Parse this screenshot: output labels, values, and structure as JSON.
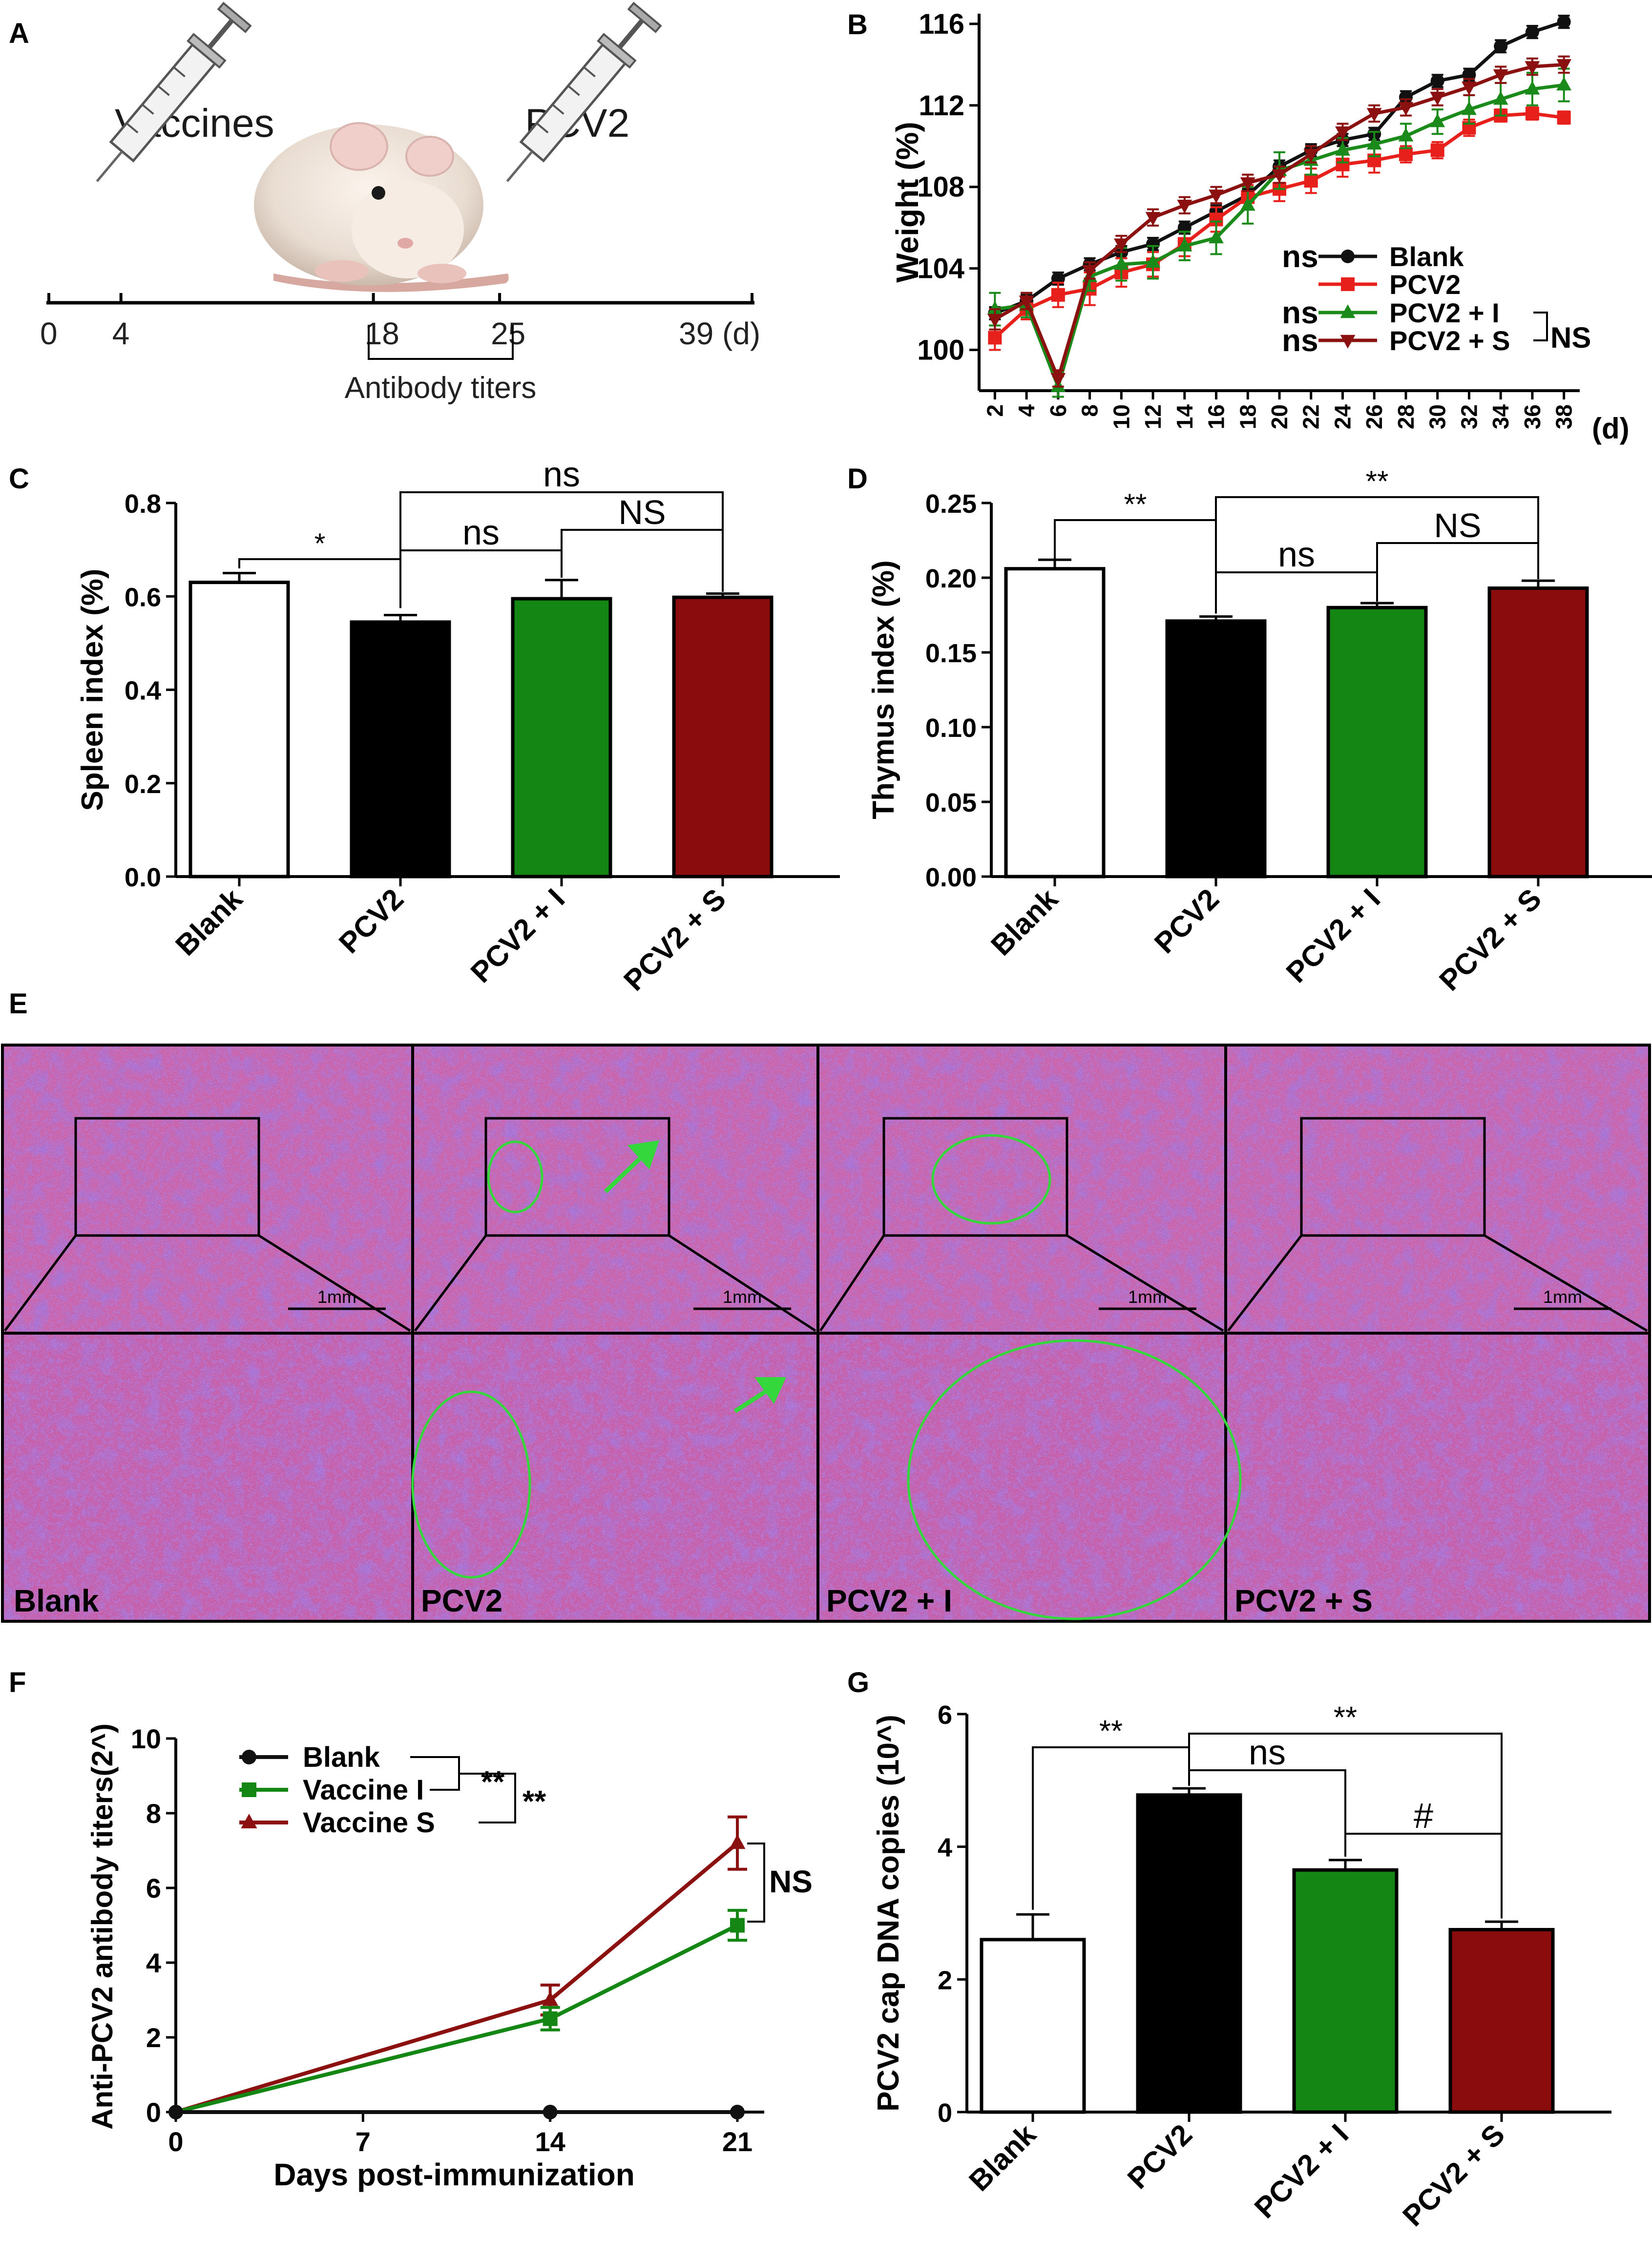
{
  "panel_letters": [
    "A",
    "B",
    "C",
    "D",
    "E",
    "F",
    "G"
  ],
  "colors": {
    "blank": "#111111",
    "pcv2": "#e8201c",
    "pcv2_i": "#1a8a1a",
    "pcv2_s": "#8b1010",
    "bar_blank": "#ffffff",
    "bar_pcv2": "#000000",
    "bar_i": "#138613",
    "bar_s": "#8b0c0c",
    "circle": "#35d83c",
    "tissue_bg": "#c45ca8",
    "tissue_dark": "#6a38b4"
  },
  "panelA": {
    "vaccines_label": "Vaccines",
    "pcv2_label": "PCV2",
    "ticks": [
      "0",
      "4",
      "18",
      "25",
      "39 (d)"
    ],
    "tick_days": [
      0,
      4,
      18,
      25,
      39
    ],
    "bracket_label": "Antibody titers"
  },
  "panelE": {
    "scale_label": "1mm",
    "captions": [
      "Blank",
      "PCV2",
      "PCV2 + I",
      "PCV2 + S"
    ]
  },
  "chart_data": [
    {
      "panel": "B",
      "type": "line",
      "title": "",
      "xlabel": "(d)",
      "ylabel": "Weight (%)",
      "ylim": [
        98,
        116.5
      ],
      "yticks": [
        100,
        104,
        108,
        112,
        116
      ],
      "x": [
        2,
        4,
        6,
        8,
        10,
        12,
        14,
        16,
        18,
        20,
        22,
        24,
        26,
        28,
        30,
        32,
        34,
        36,
        38
      ],
      "series": [
        {
          "name": "Blank",
          "color_key": "blank",
          "marker": "circle",
          "prefix": "ns",
          "values": [
            101.8,
            102.4,
            103.5,
            104.2,
            104.8,
            105.2,
            106.0,
            106.8,
            107.6,
            109.0,
            109.8,
            110.3,
            110.6,
            112.4,
            113.2,
            113.5,
            114.9,
            115.6,
            116.1
          ],
          "errors": [
            0.3,
            0.3,
            0.3,
            0.3,
            0.3,
            0.3,
            0.3,
            0.3,
            0.3,
            0.3,
            0.3,
            0.3,
            0.3,
            0.3,
            0.3,
            0.3,
            0.3,
            0.3,
            0.3
          ]
        },
        {
          "name": "PCV2",
          "color_key": "pcv2",
          "marker": "square",
          "prefix": "",
          "values": [
            100.6,
            102.0,
            102.7,
            103.0,
            103.8,
            104.2,
            105.2,
            106.4,
            107.5,
            107.9,
            108.3,
            109.1,
            109.3,
            109.6,
            109.8,
            110.9,
            111.5,
            111.6,
            111.4
          ],
          "errors": [
            0.6,
            0.5,
            0.6,
            0.8,
            0.7,
            0.6,
            0.6,
            0.6,
            0.6,
            0.6,
            0.6,
            0.6,
            0.6,
            0.4,
            0.4,
            0.4,
            0.3,
            0.3,
            0.3
          ]
        },
        {
          "name": "PCV2 + I",
          "color_key": "pcv2_i",
          "marker": "triangle-up",
          "prefix": "ns",
          "values": [
            102.0,
            102.2,
            98.2,
            103.6,
            104.2,
            104.3,
            105.1,
            105.5,
            107.1,
            108.8,
            109.3,
            109.8,
            110.1,
            110.5,
            111.2,
            111.8,
            112.3,
            112.8,
            113.0
          ],
          "errors": [
            0.8,
            0.6,
            0.5,
            0.7,
            0.8,
            0.8,
            0.7,
            0.8,
            0.9,
            0.9,
            0.7,
            0.6,
            0.6,
            0.6,
            0.6,
            0.7,
            0.8,
            0.8,
            0.8
          ]
        },
        {
          "name": "PCV2 + S",
          "color_key": "pcv2_s",
          "marker": "triangle-down",
          "prefix": "ns",
          "values": [
            101.5,
            102.4,
            98.6,
            103.9,
            105.2,
            106.5,
            107.1,
            107.6,
            108.2,
            108.6,
            109.6,
            110.7,
            111.6,
            111.9,
            112.4,
            112.9,
            113.5,
            113.9,
            114.0
          ],
          "errors": [
            0.5,
            0.4,
            0.4,
            0.4,
            0.4,
            0.4,
            0.4,
            0.4,
            0.4,
            0.4,
            0.4,
            0.4,
            0.4,
            0.4,
            0.4,
            0.4,
            0.4,
            0.4,
            0.4
          ]
        }
      ],
      "annotations": [
        "NS"
      ]
    },
    {
      "panel": "C",
      "type": "bar",
      "ylabel": "Spleen index (%)",
      "ylim": [
        0,
        0.8
      ],
      "yticks": [
        "0.0",
        "0.2",
        "0.4",
        "0.6",
        "0.8"
      ],
      "categories": [
        "Blank",
        "PCV2",
        "PCV2 + I",
        "PCV2 + S"
      ],
      "values": [
        0.63,
        0.545,
        0.595,
        0.598
      ],
      "errors": [
        0.02,
        0.015,
        0.04,
        0.008
      ],
      "fill_keys": [
        "bar_blank",
        "bar_pcv2",
        "bar_i",
        "bar_s"
      ],
      "significance": [
        "*",
        "ns",
        "NS",
        "ns"
      ]
    },
    {
      "panel": "D",
      "type": "bar",
      "ylabel": "Thymus index (%)",
      "ylim": [
        0,
        0.25
      ],
      "yticks": [
        "0.00",
        "0.05",
        "0.10",
        "0.15",
        "0.20",
        "0.25"
      ],
      "categories": [
        "Blank",
        "PCV2",
        "PCV2 + I",
        "PCV2 + S"
      ],
      "values": [
        0.206,
        0.171,
        0.18,
        0.193
      ],
      "errors": [
        0.006,
        0.003,
        0.003,
        0.005
      ],
      "fill_keys": [
        "bar_blank",
        "bar_pcv2",
        "bar_i",
        "bar_s"
      ],
      "significance": [
        "**",
        "ns",
        "NS",
        "**"
      ]
    },
    {
      "panel": "F",
      "type": "line",
      "xlabel": "Days post-immunization",
      "ylabel": "Anti-PCV2 antibody titers(2^)",
      "ylim": [
        0,
        10
      ],
      "yticks": [
        0,
        2,
        4,
        6,
        8,
        10
      ],
      "xticks": [
        0,
        7,
        14,
        21
      ],
      "x": [
        0,
        14,
        21
      ],
      "series": [
        {
          "name": "Blank",
          "color_key": "blank",
          "marker": "circle",
          "values": [
            0,
            0,
            0
          ],
          "errors": [
            0,
            0,
            0
          ]
        },
        {
          "name": "Vaccine I",
          "color_key": "bar_i",
          "marker": "square",
          "values": [
            0,
            2.5,
            5.0
          ],
          "errors": [
            0,
            0.3,
            0.4
          ]
        },
        {
          "name": "Vaccine S",
          "color_key": "pcv2_s",
          "marker": "triangle-up",
          "values": [
            0,
            3.0,
            7.2
          ],
          "errors": [
            0,
            0.4,
            0.7
          ]
        }
      ],
      "significance": [
        "**",
        "**",
        "NS"
      ]
    },
    {
      "panel": "G",
      "type": "bar",
      "ylabel": "PCV2 cap DNA copies (10^)",
      "ylim": [
        0,
        6
      ],
      "yticks": [
        "0",
        "2",
        "4",
        "6"
      ],
      "categories": [
        "Blank",
        "PCV2",
        "PCV2 + I",
        "PCV2 + S"
      ],
      "values": [
        2.6,
        4.78,
        3.65,
        2.75
      ],
      "errors": [
        0.38,
        0.1,
        0.15,
        0.12
      ],
      "fill_keys": [
        "bar_blank",
        "bar_pcv2",
        "bar_i",
        "bar_s"
      ],
      "significance": [
        "**",
        "ns",
        "**",
        "#"
      ]
    }
  ]
}
